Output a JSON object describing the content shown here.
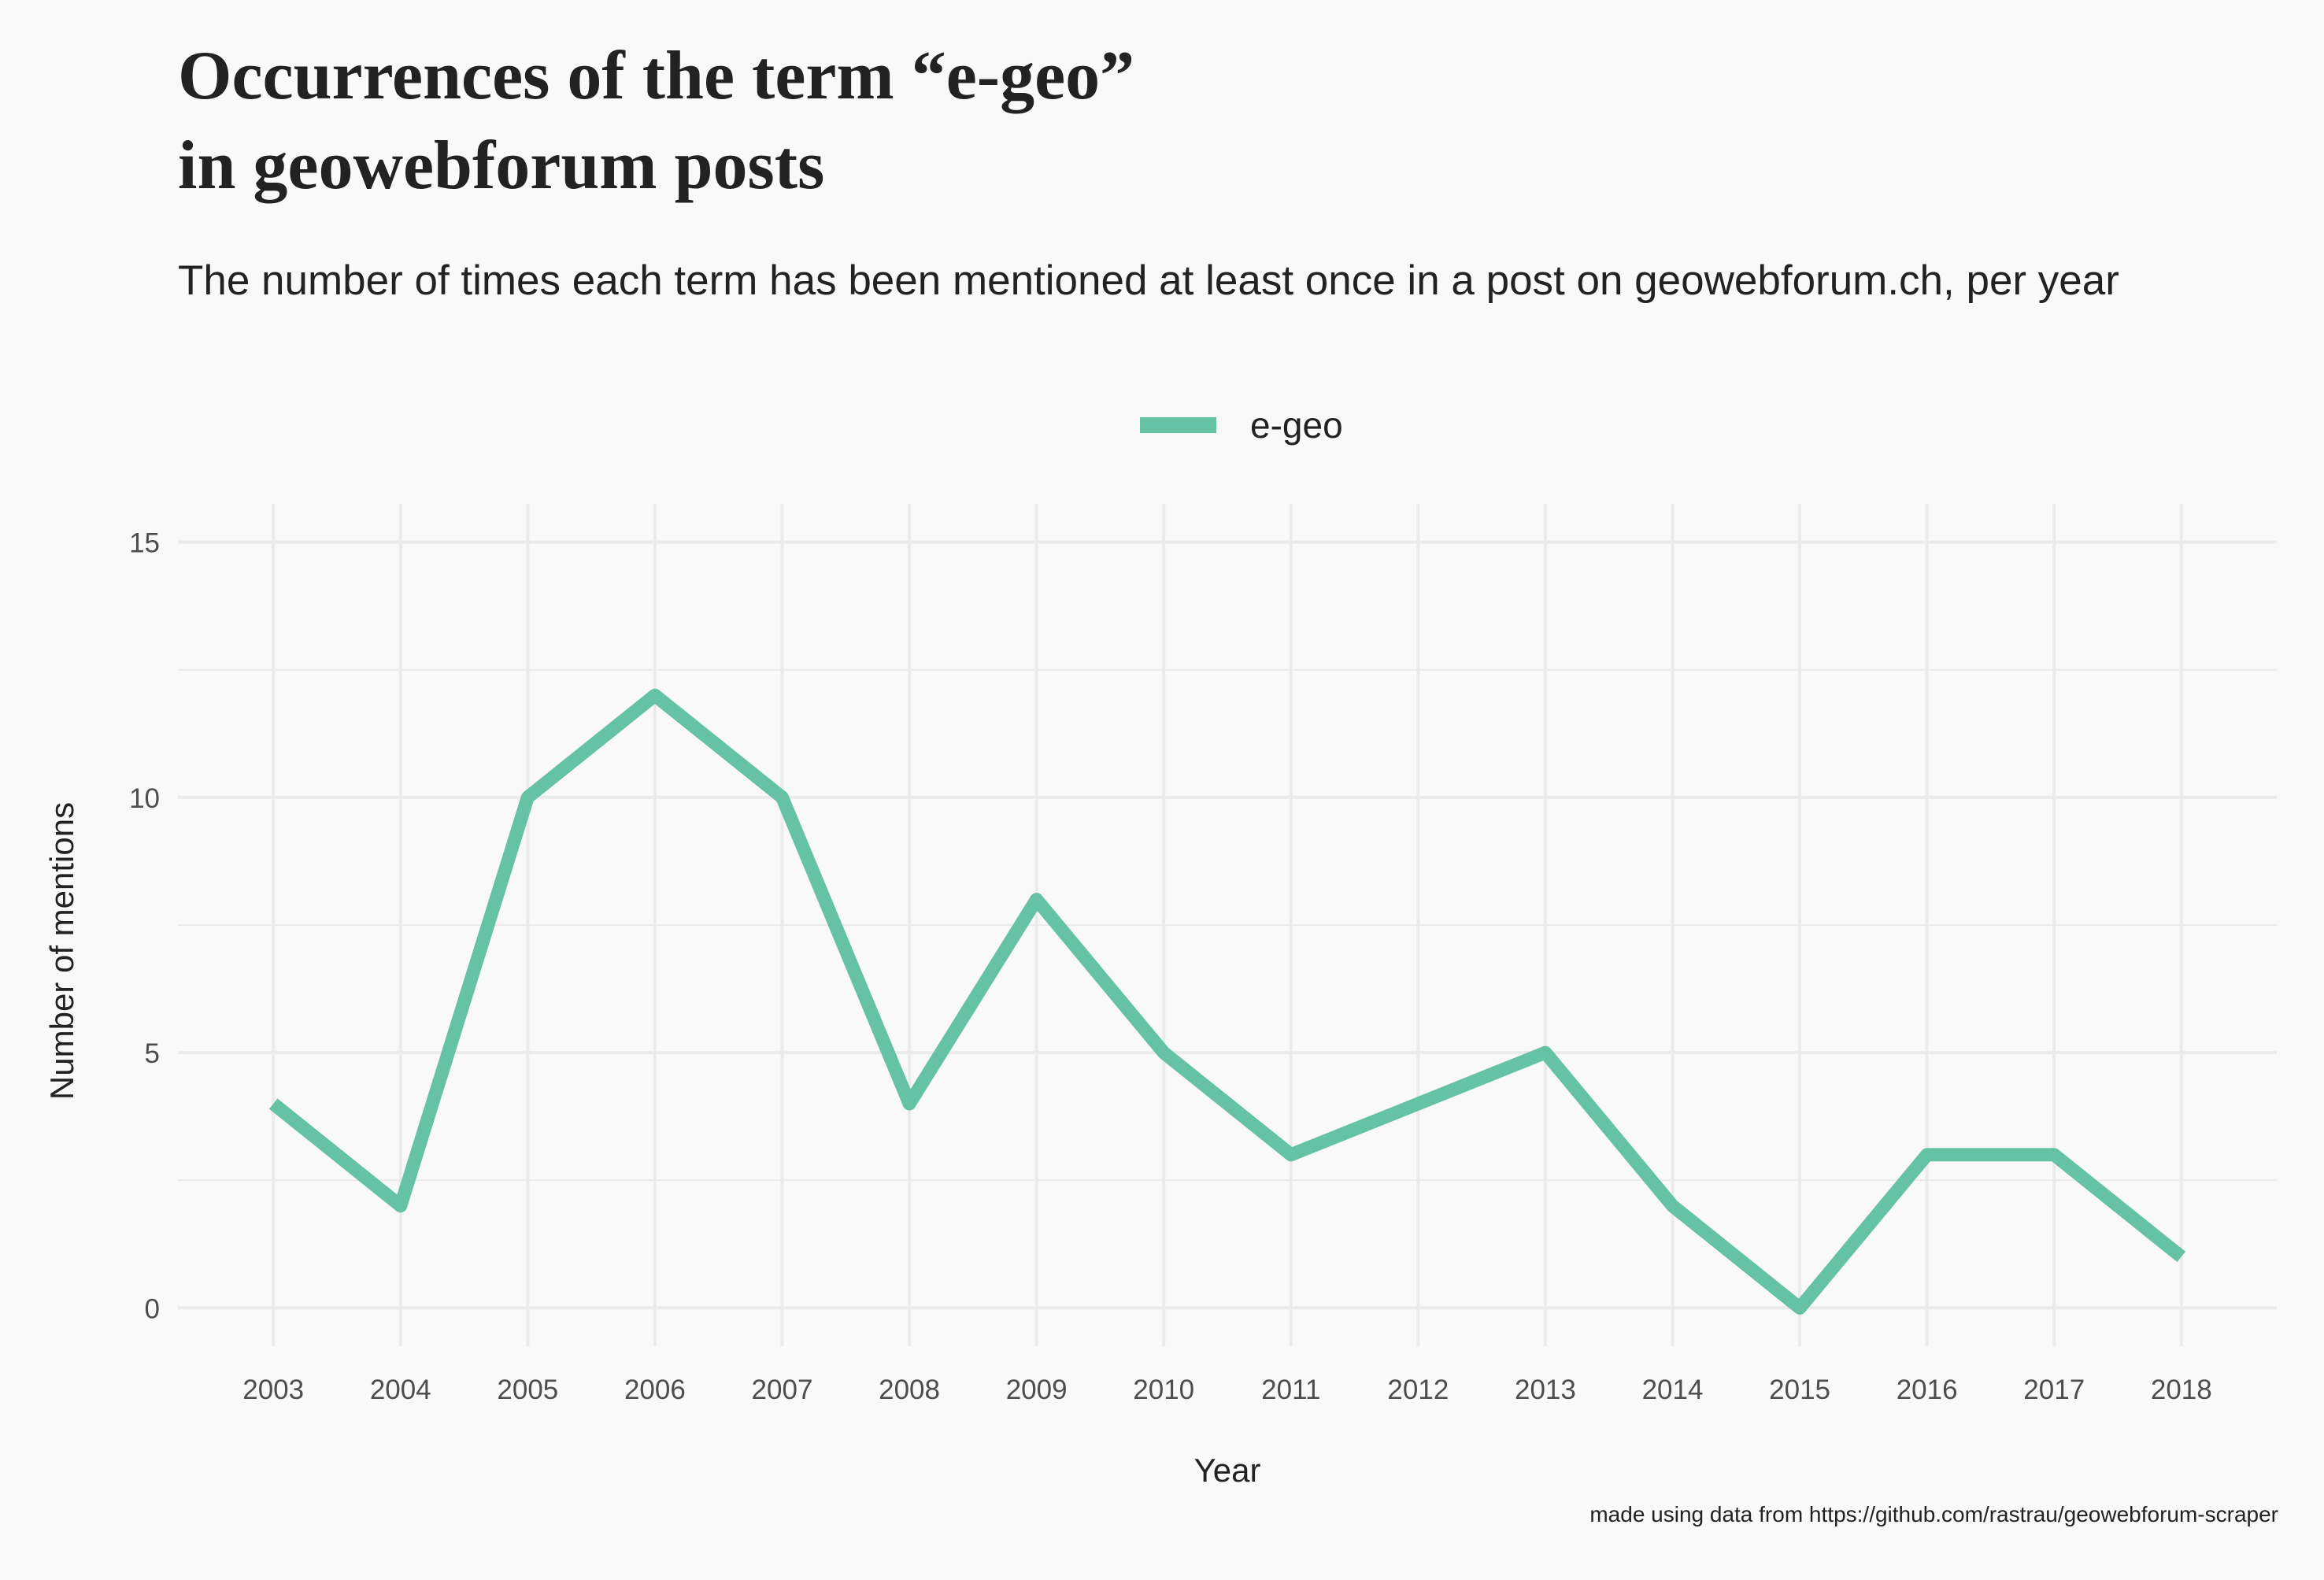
{
  "chart_data": {
    "type": "line",
    "title": "Occurrences of the term “e-geo”\nin geowebforum posts",
    "subtitle": "The number of times each term has been mentioned at least once in a post on geowebforum.ch, per year",
    "caption": "made using data from https://github.com/rastrau/geowebforum-scraper",
    "xlabel": "Year",
    "ylabel": "Number of mentions",
    "x": [
      2003,
      2004,
      2005,
      2006,
      2007,
      2008,
      2009,
      2010,
      2011,
      2012,
      2013,
      2014,
      2015,
      2016,
      2017,
      2018
    ],
    "x_tick_labels": [
      "2003",
      "2004",
      "2005",
      "2006",
      "2007",
      "2008",
      "2009",
      "2010",
      "2011",
      "2012",
      "2013",
      "2014",
      "2015",
      "2016",
      "2017",
      "2018"
    ],
    "y_ticks": [
      0,
      5,
      10,
      15
    ],
    "y_tick_labels": [
      "0",
      "5",
      "10",
      "15"
    ],
    "xlim": [
      2002.25,
      2018.75
    ],
    "ylim": [
      -0.75,
      15.75
    ],
    "grid": true,
    "legend_position": "top-center",
    "series": [
      {
        "name": "e-geo",
        "color": "#66c2a5",
        "values": [
          4,
          2,
          10,
          12,
          10,
          4,
          8,
          5,
          3,
          4,
          5,
          2,
          0,
          3,
          3,
          1
        ]
      }
    ]
  },
  "colors": {
    "background": "#f9f9f9",
    "grid": "#ebebeb",
    "text": "#222222",
    "tick_text": "#4d4d4d"
  }
}
